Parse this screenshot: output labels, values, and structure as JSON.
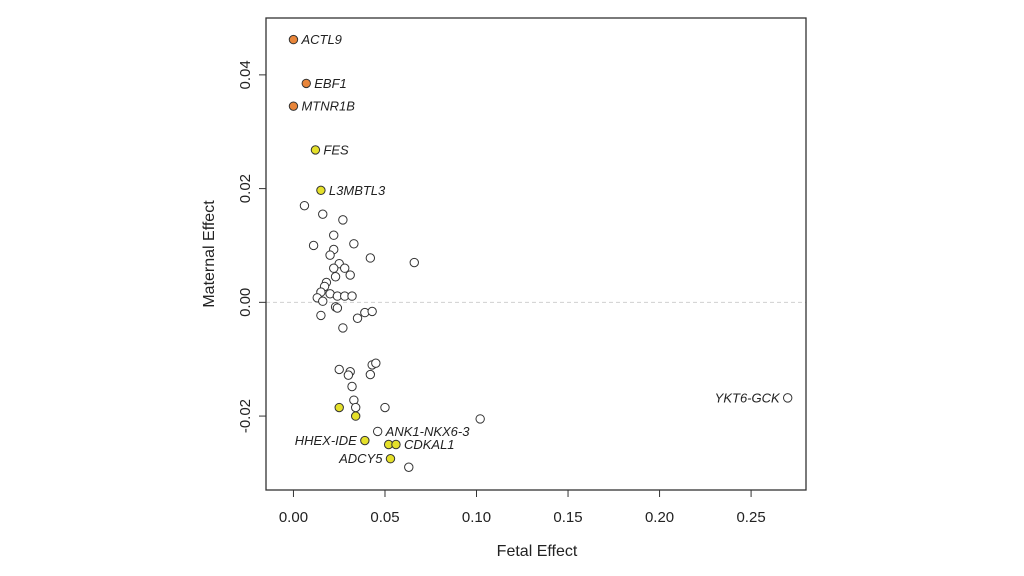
{
  "chart_data": {
    "type": "scatter",
    "xlabel": "Fetal Effect",
    "ylabel": "Maternal Effect",
    "xlim": [
      -0.015,
      0.28
    ],
    "ylim": [
      -0.033,
      0.05
    ],
    "x_ticks": [
      0.0,
      0.05,
      0.1,
      0.15,
      0.2,
      0.25
    ],
    "x_tick_labels": [
      "0.00",
      "0.05",
      "0.10",
      "0.15",
      "0.20",
      "0.25"
    ],
    "y_ticks": [
      -0.02,
      0.0,
      0.02,
      0.04
    ],
    "y_tick_labels": [
      "-0.02",
      "0.00",
      "0.02",
      "0.04"
    ],
    "reference_line": {
      "y": 0.0,
      "style": "dashed",
      "color": "#d0d0d0"
    },
    "grid": false,
    "colors": {
      "orange": "#e8853a",
      "yellow": "#e5e02a",
      "open": "#ffffff",
      "outline": "#333333"
    },
    "points": [
      {
        "x": 0.0,
        "y": 0.0462,
        "color": "orange",
        "label": "ACTL9",
        "label_side": "right"
      },
      {
        "x": 0.007,
        "y": 0.0385,
        "color": "orange",
        "label": "EBF1",
        "label_side": "right"
      },
      {
        "x": 0.0,
        "y": 0.0345,
        "color": "orange",
        "label": "MTNR1B",
        "label_side": "right"
      },
      {
        "x": 0.012,
        "y": 0.0268,
        "color": "yellow",
        "label": "FES",
        "label_side": "right"
      },
      {
        "x": 0.015,
        "y": 0.0197,
        "color": "yellow",
        "label": "L3MBTL3",
        "label_side": "right"
      },
      {
        "x": 0.006,
        "y": 0.017,
        "color": "open"
      },
      {
        "x": 0.016,
        "y": 0.0155,
        "color": "open"
      },
      {
        "x": 0.027,
        "y": 0.0145,
        "color": "open"
      },
      {
        "x": 0.022,
        "y": 0.0118,
        "color": "open"
      },
      {
        "x": 0.011,
        "y": 0.01,
        "color": "open"
      },
      {
        "x": 0.033,
        "y": 0.0103,
        "color": "open"
      },
      {
        "x": 0.022,
        "y": 0.0093,
        "color": "open"
      },
      {
        "x": 0.02,
        "y": 0.0083,
        "color": "open"
      },
      {
        "x": 0.042,
        "y": 0.0078,
        "color": "open"
      },
      {
        "x": 0.066,
        "y": 0.007,
        "color": "open"
      },
      {
        "x": 0.025,
        "y": 0.0068,
        "color": "open"
      },
      {
        "x": 0.022,
        "y": 0.006,
        "color": "open"
      },
      {
        "x": 0.028,
        "y": 0.006,
        "color": "open"
      },
      {
        "x": 0.031,
        "y": 0.0048,
        "color": "open"
      },
      {
        "x": 0.023,
        "y": 0.0045,
        "color": "open"
      },
      {
        "x": 0.018,
        "y": 0.0035,
        "color": "open"
      },
      {
        "x": 0.017,
        "y": 0.0028,
        "color": "open"
      },
      {
        "x": 0.015,
        "y": 0.0018,
        "color": "open"
      },
      {
        "x": 0.02,
        "y": 0.0015,
        "color": "open"
      },
      {
        "x": 0.013,
        "y": 0.0008,
        "color": "open"
      },
      {
        "x": 0.024,
        "y": 0.0011,
        "color": "open"
      },
      {
        "x": 0.028,
        "y": 0.0011,
        "color": "open"
      },
      {
        "x": 0.032,
        "y": 0.0011,
        "color": "open"
      },
      {
        "x": 0.016,
        "y": 0.0002,
        "color": "open"
      },
      {
        "x": 0.023,
        "y": -0.0008,
        "color": "open"
      },
      {
        "x": 0.024,
        "y": -0.001,
        "color": "open"
      },
      {
        "x": 0.015,
        "y": -0.0023,
        "color": "open"
      },
      {
        "x": 0.039,
        "y": -0.0018,
        "color": "open"
      },
      {
        "x": 0.043,
        "y": -0.0016,
        "color": "open"
      },
      {
        "x": 0.035,
        "y": -0.0028,
        "color": "open"
      },
      {
        "x": 0.027,
        "y": -0.0045,
        "color": "open"
      },
      {
        "x": 0.043,
        "y": -0.011,
        "color": "open"
      },
      {
        "x": 0.045,
        "y": -0.0107,
        "color": "open"
      },
      {
        "x": 0.025,
        "y": -0.0118,
        "color": "open"
      },
      {
        "x": 0.031,
        "y": -0.0122,
        "color": "open"
      },
      {
        "x": 0.03,
        "y": -0.0128,
        "color": "open"
      },
      {
        "x": 0.042,
        "y": -0.0127,
        "color": "open"
      },
      {
        "x": 0.032,
        "y": -0.0148,
        "color": "open"
      },
      {
        "x": 0.033,
        "y": -0.0172,
        "color": "open"
      },
      {
        "x": 0.025,
        "y": -0.0185,
        "color": "yellow"
      },
      {
        "x": 0.034,
        "y": -0.0185,
        "color": "open"
      },
      {
        "x": 0.05,
        "y": -0.0185,
        "color": "open"
      },
      {
        "x": 0.034,
        "y": -0.02,
        "color": "yellow"
      },
      {
        "x": 0.102,
        "y": -0.0205,
        "color": "open"
      },
      {
        "x": 0.046,
        "y": -0.0227,
        "color": "open",
        "label": "ANK1-NKX6-3",
        "label_side": "right"
      },
      {
        "x": 0.039,
        "y": -0.0243,
        "color": "yellow",
        "label": "HHEX-IDE",
        "label_side": "left"
      },
      {
        "x": 0.052,
        "y": -0.025,
        "color": "yellow"
      },
      {
        "x": 0.056,
        "y": -0.025,
        "color": "yellow",
        "label": "CDKAL1",
        "label_side": "right"
      },
      {
        "x": 0.053,
        "y": -0.0275,
        "color": "yellow",
        "label": "ADCY5",
        "label_side": "left"
      },
      {
        "x": 0.063,
        "y": -0.029,
        "color": "open"
      },
      {
        "x": 0.27,
        "y": -0.0168,
        "color": "open",
        "label": "YKT6-GCK",
        "label_side": "left"
      }
    ]
  }
}
